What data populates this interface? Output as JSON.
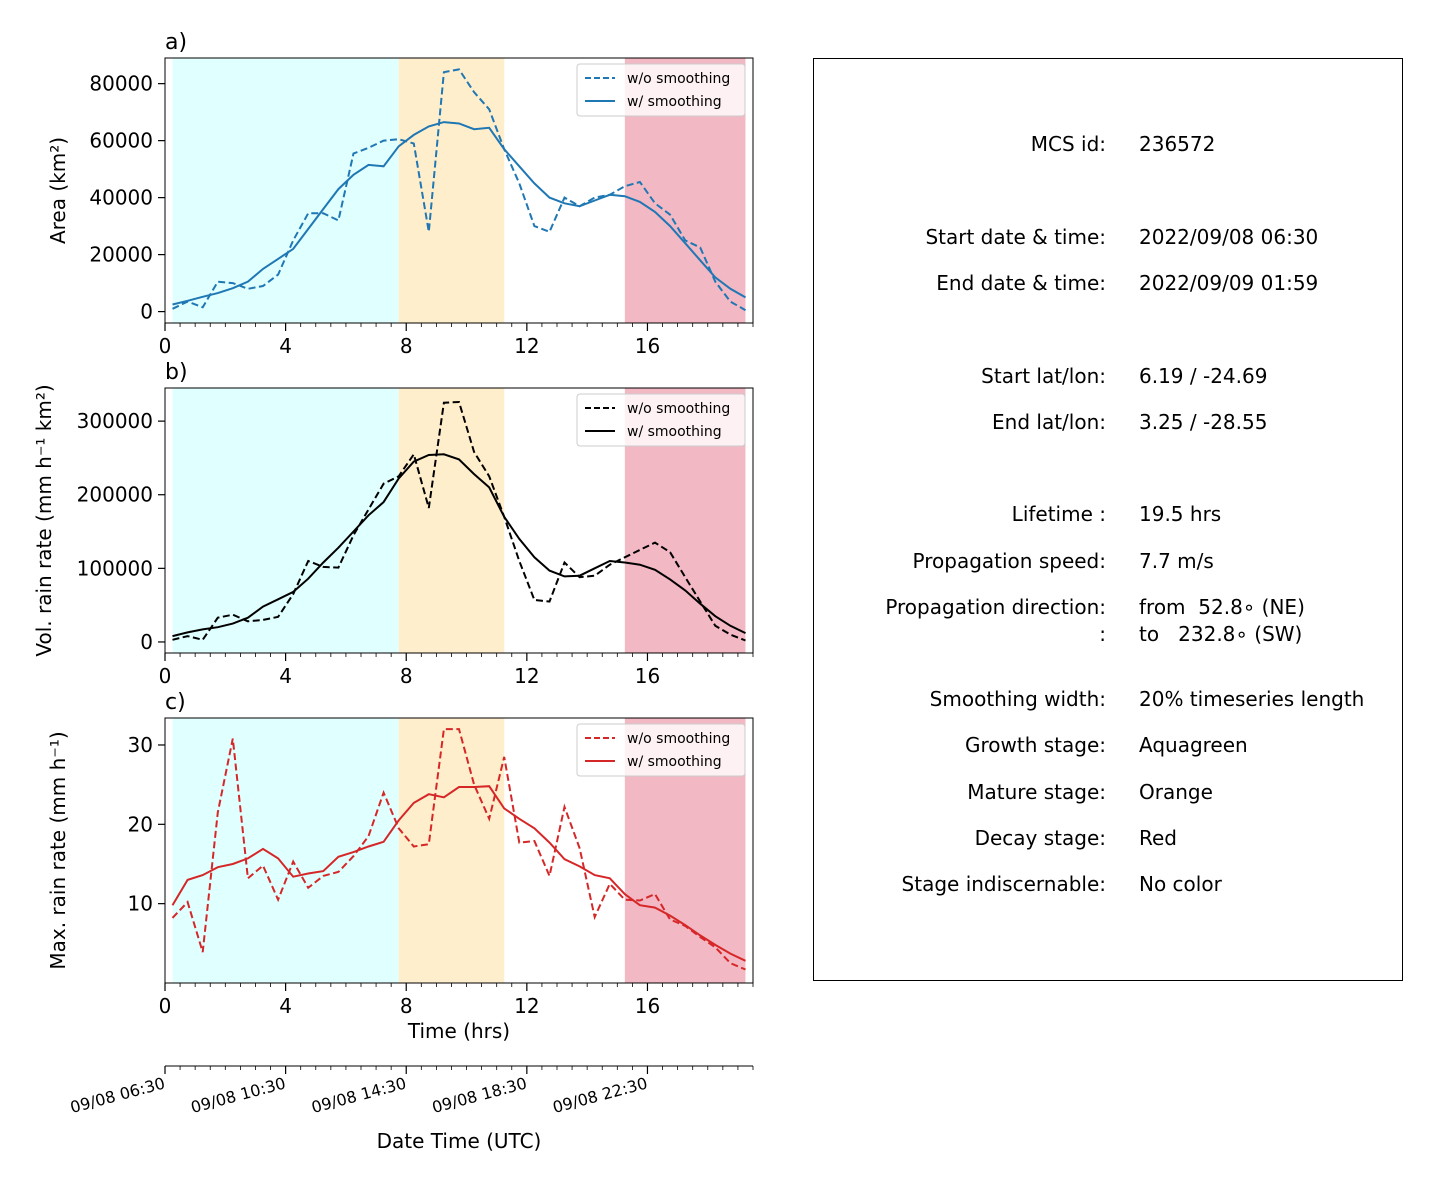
{
  "colors": {
    "growth": "#e0ffff",
    "mature": "#ffeecc",
    "decay": "#f2b8c4",
    "area": "#1f77b4",
    "volrain": "#000000",
    "maxrain": "#d62728"
  },
  "stages": {
    "growth": [
      0.25,
      7.75
    ],
    "mature": [
      7.75,
      11.25
    ],
    "decay": [
      15.25,
      19.25
    ]
  },
  "legend": {
    "raw": "w/o smoothing",
    "smooth": "w/ smoothing"
  },
  "chart_data": [
    {
      "type": "line",
      "panel_label": "a)",
      "ylabel": "Area  (km²)",
      "xlim": [
        0,
        19.5
      ],
      "ylim": [
        -4000,
        89000
      ],
      "yticks": [
        0,
        20000,
        40000,
        60000,
        80000
      ],
      "xticks": [
        0,
        4,
        8,
        12,
        16
      ],
      "x": [
        0.25,
        0.75,
        1.25,
        1.75,
        2.25,
        2.75,
        3.25,
        3.75,
        4.25,
        4.75,
        5.25,
        5.75,
        6.25,
        6.75,
        7.25,
        7.75,
        8.25,
        8.75,
        9.25,
        9.75,
        10.25,
        10.75,
        11.25,
        11.75,
        12.25,
        12.75,
        13.25,
        13.75,
        14.25,
        14.75,
        15.25,
        15.75,
        16.25,
        16.75,
        17.25,
        17.75,
        18.25,
        18.75,
        19.25
      ],
      "series": [
        {
          "name": "w/o smoothing",
          "style": "dashed",
          "values": [
            1000,
            3500,
            1500,
            10500,
            10000,
            8000,
            9000,
            13000,
            25000,
            34500,
            34500,
            32000,
            55500,
            57500,
            60000,
            60500,
            59000,
            28000,
            84000,
            85000,
            77000,
            71000,
            57000,
            45000,
            30000,
            28000,
            40000,
            37000,
            40000,
            41000,
            44000,
            45500,
            38000,
            34000,
            25000,
            22500,
            10500,
            3500,
            500
          ]
        },
        {
          "name": "w/ smoothing",
          "style": "solid",
          "values": [
            2500,
            3800,
            5200,
            6500,
            8200,
            10500,
            15000,
            18500,
            22000,
            29000,
            36000,
            43000,
            48000,
            51500,
            51000,
            58000,
            62000,
            65000,
            66500,
            66000,
            64000,
            64500,
            57000,
            51000,
            45000,
            40000,
            38000,
            37000,
            39000,
            41000,
            40500,
            38500,
            35000,
            30000,
            24000,
            18000,
            12000,
            8000,
            5000
          ]
        }
      ]
    },
    {
      "type": "line",
      "panel_label": "b)",
      "ylabel": "Vol. rain rate (mm h⁻¹ km²)",
      "xlim": [
        0,
        19.5
      ],
      "ylim": [
        -15000,
        345000
      ],
      "yticks": [
        0,
        100000,
        200000,
        300000
      ],
      "xticks": [
        0,
        4,
        8,
        12,
        16
      ],
      "x": [
        0.25,
        0.75,
        1.25,
        1.75,
        2.25,
        2.75,
        3.25,
        3.75,
        4.25,
        4.75,
        5.25,
        5.75,
        6.25,
        6.75,
        7.25,
        7.75,
        8.25,
        8.75,
        9.25,
        9.75,
        10.25,
        10.75,
        11.25,
        11.75,
        12.25,
        12.75,
        13.25,
        13.75,
        14.25,
        14.75,
        15.25,
        15.75,
        16.25,
        16.75,
        17.25,
        17.75,
        18.25,
        18.75,
        19.25
      ],
      "series": [
        {
          "name": "w/o smoothing",
          "style": "dashed",
          "values": [
            3000,
            8000,
            3000,
            33000,
            37000,
            28000,
            30000,
            34000,
            65000,
            110000,
            102000,
            101000,
            145000,
            180000,
            215000,
            225000,
            255000,
            182000,
            325000,
            326000,
            258000,
            225000,
            170000,
            110000,
            57000,
            55000,
            108000,
            88000,
            90000,
            105000,
            115000,
            125000,
            135000,
            122000,
            88000,
            55000,
            22000,
            10000,
            2000
          ]
        },
        {
          "name": "w/ smoothing",
          "style": "solid",
          "values": [
            8000,
            13000,
            17000,
            20000,
            25000,
            33000,
            48000,
            58000,
            68000,
            86000,
            108000,
            128000,
            150000,
            172000,
            190000,
            222000,
            245000,
            254000,
            255000,
            248000,
            228000,
            210000,
            170000,
            140000,
            115000,
            97000,
            89000,
            90000,
            100000,
            110000,
            108000,
            105000,
            98000,
            85000,
            70000,
            52000,
            35000,
            22000,
            12000
          ]
        }
      ]
    },
    {
      "type": "line",
      "panel_label": "c)",
      "ylabel": "Max. rain rate  (mm h⁻¹)",
      "xlabel": "Time (hrs)",
      "xlim": [
        0,
        19.5
      ],
      "ylim": [
        0,
        33.4
      ],
      "yticks": [
        10,
        20,
        30
      ],
      "xticks": [
        0,
        4,
        8,
        12,
        16
      ],
      "x": [
        0.25,
        0.75,
        1.25,
        1.75,
        2.25,
        2.75,
        3.25,
        3.75,
        4.25,
        4.75,
        5.25,
        5.75,
        6.25,
        6.75,
        7.25,
        7.75,
        8.25,
        8.75,
        9.25,
        9.75,
        10.25,
        10.75,
        11.25,
        11.75,
        12.25,
        12.75,
        13.25,
        13.75,
        14.25,
        14.75,
        15.25,
        15.75,
        16.25,
        16.75,
        17.25,
        17.75,
        18.25,
        18.75,
        19.25
      ],
      "series": [
        {
          "name": "w/o smoothing",
          "style": "dashed",
          "values": [
            8.2,
            10.2,
            3.9,
            21.5,
            30.8,
            13.2,
            14.8,
            10.5,
            15.3,
            12.0,
            13.5,
            14.0,
            16.0,
            18.5,
            24.0,
            19.5,
            17.2,
            17.5,
            32.0,
            32.0,
            25.0,
            20.7,
            28.5,
            17.7,
            17.9,
            13.5,
            22.2,
            17.0,
            8.3,
            12.5,
            10.5,
            10.4,
            11.2,
            8.0,
            7.2,
            5.8,
            4.5,
            2.5,
            1.7
          ]
        },
        {
          "name": "w/ smoothing",
          "style": "solid",
          "values": [
            9.8,
            13.0,
            13.6,
            14.6,
            15.0,
            15.7,
            16.9,
            15.7,
            13.4,
            13.8,
            14.1,
            15.9,
            16.5,
            17.2,
            17.8,
            20.5,
            22.7,
            23.8,
            23.4,
            24.7,
            24.7,
            24.8,
            22.0,
            20.7,
            19.5,
            17.7,
            15.6,
            14.7,
            13.6,
            13.2,
            11.2,
            9.8,
            9.5,
            8.5,
            7.3,
            6.0,
            4.8,
            3.7,
            2.8
          ]
        }
      ]
    }
  ],
  "x_axis": {
    "datetime_label": "Date Time (UTC)",
    "xtick_labels": [
      "0",
      "4",
      "8",
      "12",
      "16"
    ],
    "datetime_ticks": [
      {
        "x": 0,
        "label": "09/08 06:30"
      },
      {
        "x": 4,
        "label": "09/08 10:30"
      },
      {
        "x": 8,
        "label": "09/08 14:30"
      },
      {
        "x": 12,
        "label": "09/08 18:30"
      },
      {
        "x": 16,
        "label": "09/08 22:30"
      }
    ]
  },
  "info": [
    {
      "label": "MCS id:",
      "value": "236572"
    },
    {
      "label": "Start date & time:",
      "value": "2022/09/08 06:30"
    },
    {
      "label": "End date & time:",
      "value": "2022/09/09 01:59"
    },
    {
      "label": "Start lat/lon:",
      "value": "6.19 / -24.69"
    },
    {
      "label": "End lat/lon:",
      "value": "3.25 / -28.55"
    },
    {
      "label": "Lifetime :",
      "value": "19.5 hrs"
    },
    {
      "label": "Propagation speed:",
      "value": "7.7 m/s"
    },
    {
      "label": "Propagation direction:",
      "value": "from  52.8∘ (NE)"
    },
    {
      "label": ":",
      "value": "to   232.8∘ (SW)"
    },
    {
      "label": "Smoothing width:",
      "value": "20% timeseries length"
    },
    {
      "label": "Growth stage:",
      "value": "Aquagreen"
    },
    {
      "label": "Mature stage:",
      "value": "Orange"
    },
    {
      "label": "Decay stage:",
      "value": "Red"
    },
    {
      "label": "Stage indiscernable:",
      "value": "No color"
    }
  ]
}
